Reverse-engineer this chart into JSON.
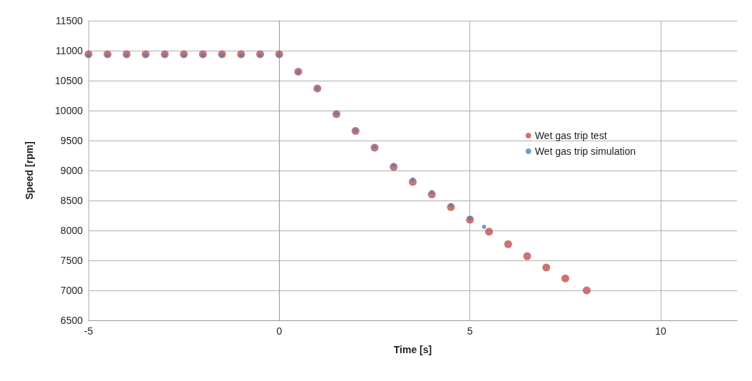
{
  "chart_data": {
    "type": "scatter",
    "xlabel": "Time [s]",
    "ylabel": "Speed [rpm]",
    "xlim": [
      -5,
      12
    ],
    "xticks": [
      -5,
      0,
      5,
      10
    ],
    "ylim": [
      6500,
      11500
    ],
    "yticks": [
      6500,
      7000,
      7500,
      8000,
      8500,
      9000,
      9500,
      10000,
      10500,
      11000,
      11500
    ],
    "grid": true,
    "legend": "right",
    "marker": "circle",
    "series": [
      {
        "name": "Wet gas trip test",
        "color": "#c0504d",
        "x": [
          -5,
          -4.5,
          -4,
          -3.5,
          -3,
          -2.5,
          -2,
          -1.5,
          -1,
          -0.5,
          0,
          0.5,
          1,
          1.5,
          2,
          2.5,
          3,
          3.5,
          4,
          4.5,
          5,
          5.5,
          6,
          6.5,
          7,
          7.5,
          8.06
        ],
        "values": [
          10940,
          10940,
          10940,
          10940,
          10940,
          10940,
          10940,
          10940,
          10940,
          10940,
          10940,
          10650,
          10370,
          9940,
          9660,
          9380,
          9060,
          8810,
          8600,
          8390,
          8180,
          7980,
          7770,
          7570,
          7380,
          7200,
          7000
        ]
      },
      {
        "name": "Wet gas trip simulation",
        "color": "#4f81bd",
        "x": [
          -5,
          -4.5,
          -4,
          -3.5,
          -3,
          -2.5,
          -2,
          -1.5,
          -1,
          -0.5,
          0,
          0.5,
          1,
          1.5,
          2,
          2.5,
          3,
          3.5,
          4,
          4.5,
          5,
          5.37
        ],
        "values": [
          10920,
          10920,
          10920,
          10920,
          10920,
          10920,
          10920,
          10920,
          10920,
          10920,
          10920,
          10640,
          10370,
          9950,
          9670,
          9390,
          9090,
          8850,
          8640,
          8420,
          8210,
          8060
        ]
      }
    ]
  }
}
